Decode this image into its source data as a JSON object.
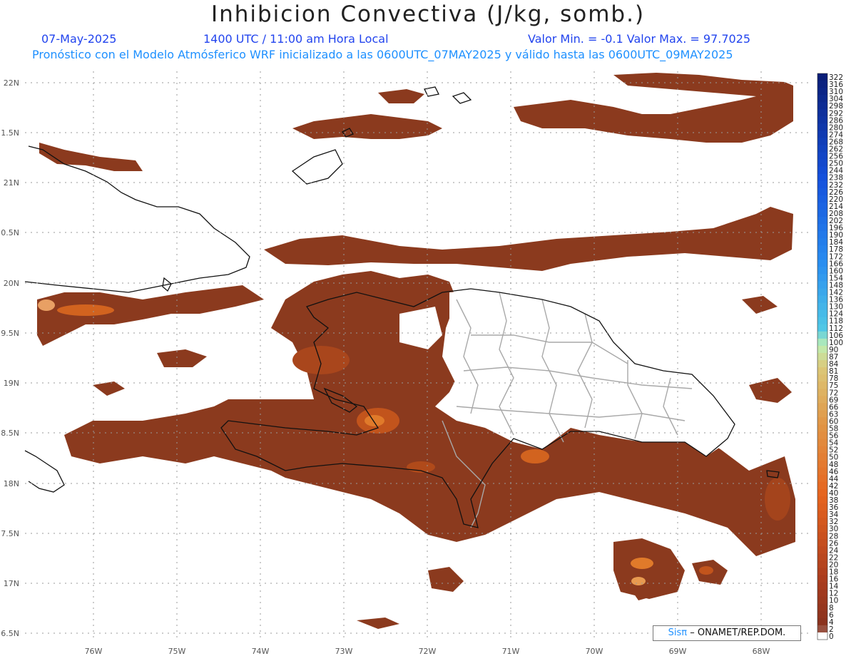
{
  "title": "Inhibicion Convectiva (J/kg, somb.)",
  "date": "07-May-2025",
  "time": "1400 UTC / 11:00 am Hora Local",
  "minmax": "Valor Min. = -0.1  Valor Max. = 97.7025",
  "forecast_line": "Pronóstico con el Modelo Atmósferico WRF inicializado a las 0600UTC_07MAY2025 y válido hasta las  0600UTC_09MAY2025",
  "credit": {
    "logo": "Sisπ",
    "text": "– ONAMET/REP.DOM."
  },
  "lat_labels": [
    "22N",
    "1.5N",
    "21N",
    "0.5N",
    "20N",
    "9.5N",
    "19N",
    "8.5N",
    "18N",
    "7.5N",
    "17N",
    "6.5N"
  ],
  "lon_labels": [
    "76W",
    "75W",
    "74W",
    "73W",
    "72W",
    "71W",
    "70W",
    "69W",
    "68W"
  ],
  "colorbar_labels": [
    "322",
    "316",
    "310",
    "304",
    "298",
    "292",
    "286",
    "280",
    "274",
    "268",
    "262",
    "256",
    "250",
    "244",
    "238",
    "232",
    "226",
    "220",
    "214",
    "208",
    "202",
    "196",
    "190",
    "184",
    "178",
    "172",
    "166",
    "160",
    "154",
    "148",
    "142",
    "136",
    "130",
    "124",
    "118",
    "112",
    "106",
    "100",
    "90",
    "87",
    "84",
    "81",
    "78",
    "75",
    "72",
    "69",
    "66",
    "63",
    "60",
    "58",
    "56",
    "54",
    "52",
    "50",
    "48",
    "46",
    "44",
    "42",
    "40",
    "38",
    "36",
    "34",
    "32",
    "30",
    "28",
    "26",
    "24",
    "22",
    "20",
    "18",
    "16",
    "14",
    "12",
    "10",
    "8",
    "6",
    "4",
    "2",
    "0"
  ],
  "colors": {
    "field_dark": "#8b3a1e",
    "field_mid": "#b04a1a",
    "field_bright": "#e07a2a",
    "land_border": "#111111",
    "admin_border": "#a8a8a8"
  }
}
